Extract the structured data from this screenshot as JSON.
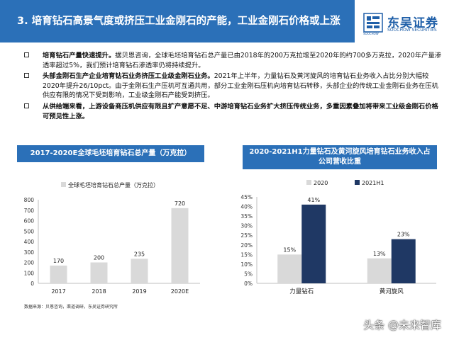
{
  "header": {
    "title": "3. 培育钻石高景气度或挤压工业金刚石的产能，工业金刚石价格或上涨",
    "logo_cn": "东吴证券",
    "logo_en": "SOOCHOW SECURITIES",
    "logo_mark_text": "SOOCHOW"
  },
  "bullets": [
    {
      "bold": "培育钻石产量快速提升。",
      "text": "据贝恩咨询，全球毛坯培育钻石总产量已由2018年的200万克拉增至2020年的约700多万克拉，2020年产量渗透率超过5%，我们预计培育钻石渗透率仍将持续提升。"
    },
    {
      "bold": "头部金刚石生产企业培育钻石业务挤压工业级金刚石业务。",
      "text": "2021年上半年，力量钻石及黄河旋风的培育钻石业务收入占比分别大幅较2020年提升26/10pct。由于金刚石生产压机可互通共用，部分工业金刚石压机向培育钻石转移，头部企业的传统工业金刚石业务在压机供应有限的情况下受到影响，工业级金刚石产能受到挤压。"
    },
    {
      "bold": "从供给端来看，上游设备商压机供应有限且扩产意愿不足、中游培育钻石业务扩大挤压传统业务，多重因素叠加将带来工业级金刚石价格可预见性上涨。",
      "text": ""
    }
  ],
  "panel_left_title": "2017-2020E全球毛坯培育钻石总产量（万克拉）",
  "panel_right_title": "2020-2021H1力量钻石及黄河旋风培育钻石业务收入占公司营收比重",
  "source": "数据来源：贝恩咨询，渠道调研，东吴证券研究所",
  "watermark": "头条 @未来智库",
  "colors": {
    "header_blue": "#2b70b8",
    "bar_gray": "#d9d9d9",
    "bar_navy": "#1f3864"
  },
  "chart_data": [
    {
      "type": "bar",
      "categories": [
        "2017",
        "2018",
        "2019",
        "2020E"
      ],
      "series": [
        {
          "name": "全球毛坯培育钻石总产量（万克拉）",
          "values": [
            170,
            200,
            235,
            720
          ]
        }
      ],
      "ylim": [
        0,
        800
      ],
      "yticks": [
        0,
        100,
        200,
        300,
        400,
        500,
        600,
        700,
        800
      ],
      "legend": "top-left",
      "grid": false
    },
    {
      "type": "bar",
      "categories": [
        "力量钻石",
        "黄河旋风"
      ],
      "series": [
        {
          "name": "2020",
          "values": [
            15,
            13
          ]
        },
        {
          "name": "2021H1",
          "values": [
            41,
            23
          ]
        }
      ],
      "ylim": [
        0,
        45
      ],
      "yticks": [
        "0%",
        "5%",
        "10%",
        "15%",
        "20%",
        "25%",
        "30%",
        "35%",
        "40%",
        "45%"
      ],
      "value_suffix": "%",
      "legend": "top",
      "grid": false
    }
  ]
}
